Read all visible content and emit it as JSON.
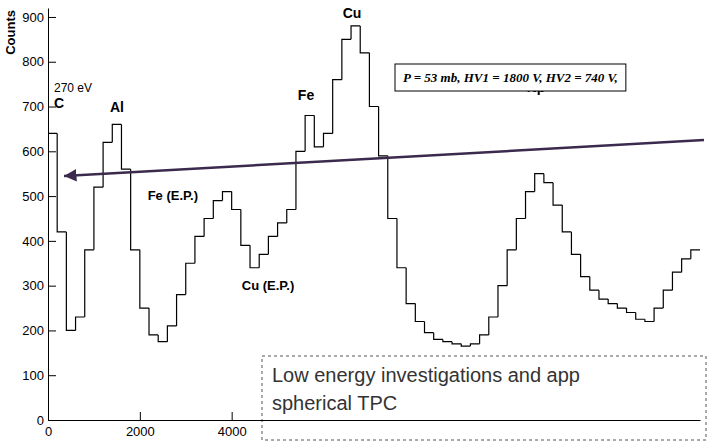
{
  "chart_data": {
    "type": "histogram",
    "ylabel": "Counts",
    "bins": [
      0,
      200,
      400,
      600,
      800,
      1000,
      1200,
      1400,
      1600,
      1800,
      2000,
      2200,
      2400,
      2600,
      2800,
      3000,
      3200,
      3400,
      3600,
      3800,
      4000,
      4200,
      4400,
      4600,
      4800,
      5000,
      5200,
      5400,
      5600,
      5800,
      6000,
      6200,
      6400,
      6600,
      6800,
      7000,
      7200,
      7400,
      7600,
      7800,
      8000,
      8200,
      8400,
      8600,
      8800,
      9000,
      9200,
      9400,
      9600,
      9800,
      10000,
      10200,
      10400,
      10600,
      10800,
      11000,
      11200,
      11400,
      11600,
      11800,
      12000,
      12200,
      12400,
      12600,
      12800,
      13000,
      13200,
      13400,
      13600,
      13800,
      14000,
      14200
    ],
    "values": [
      640,
      420,
      200,
      230,
      380,
      520,
      620,
      660,
      560,
      380,
      250,
      190,
      175,
      210,
      280,
      350,
      410,
      450,
      490,
      510,
      470,
      390,
      340,
      370,
      410,
      440,
      470,
      600,
      680,
      610,
      640,
      760,
      850,
      880,
      820,
      700,
      590,
      450,
      340,
      260,
      220,
      195,
      180,
      175,
      170,
      165,
      170,
      190,
      230,
      300,
      380,
      450,
      510,
      550,
      530,
      480,
      420,
      370,
      320,
      290,
      270,
      260,
      250,
      240,
      225,
      220,
      250,
      290,
      330,
      360,
      380
    ],
    "color": "#000000",
    "xlim": [
      0,
      14200
    ],
    "ylim": [
      0,
      920
    ],
    "xticks": [
      0,
      2000,
      4000
    ],
    "yticks": [
      0,
      100,
      200,
      300,
      400,
      500,
      600,
      700,
      800,
      900
    ],
    "annotations": [
      "270 eV",
      "C",
      "Al",
      "Fe (E.P.)",
      "Cu (E.P.)",
      "Fe",
      "Cu",
      "Np",
      "P = 53 mb, HV1 = 1800 V, HV2 = 740 V,",
      "Low energy investigations and app",
      "spherical TPC"
    ]
  }
}
